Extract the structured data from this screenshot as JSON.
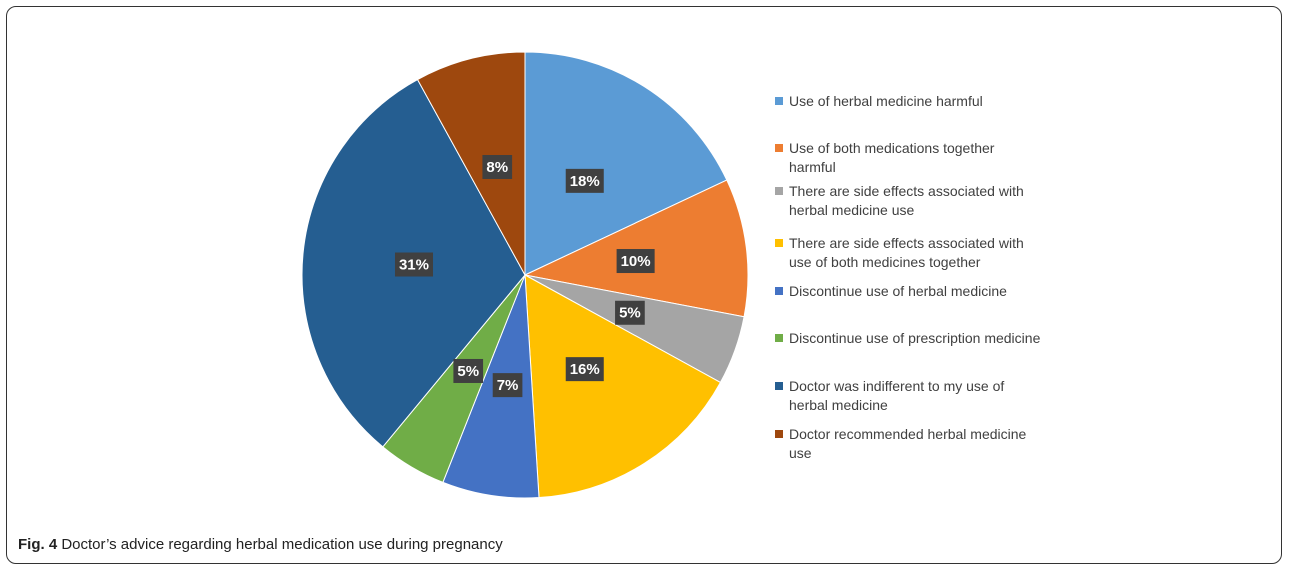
{
  "chart_data": {
    "type": "pie",
    "caption_label": "Fig. 4",
    "caption": "Doctor’s advice regarding herbal medication use during pregnancy",
    "categories": [
      "Use of herbal medicine harmful",
      "Use of both medications together harmful",
      "There are side effects associated with herbal medicine use",
      "There are side effects associated with use of both medicines together",
      "Discontinue use of herbal medicine",
      "Discontinue use of prescription medicine",
      "Doctor was indifferent to my use of herbal medicine",
      "Doctor recommended herbal medicine use"
    ],
    "values": [
      18,
      10,
      5,
      16,
      7,
      5,
      31,
      8
    ],
    "value_labels": [
      "18%",
      "10%",
      "5%",
      "16%",
      "7%",
      "5%",
      "31%",
      "8%"
    ],
    "colors": [
      "#5b9bd5",
      "#ed7d31",
      "#a5a5a5",
      "#ffc000",
      "#4472c4",
      "#70ad47",
      "#255e91",
      "#9e480e"
    ],
    "legend": "right"
  }
}
